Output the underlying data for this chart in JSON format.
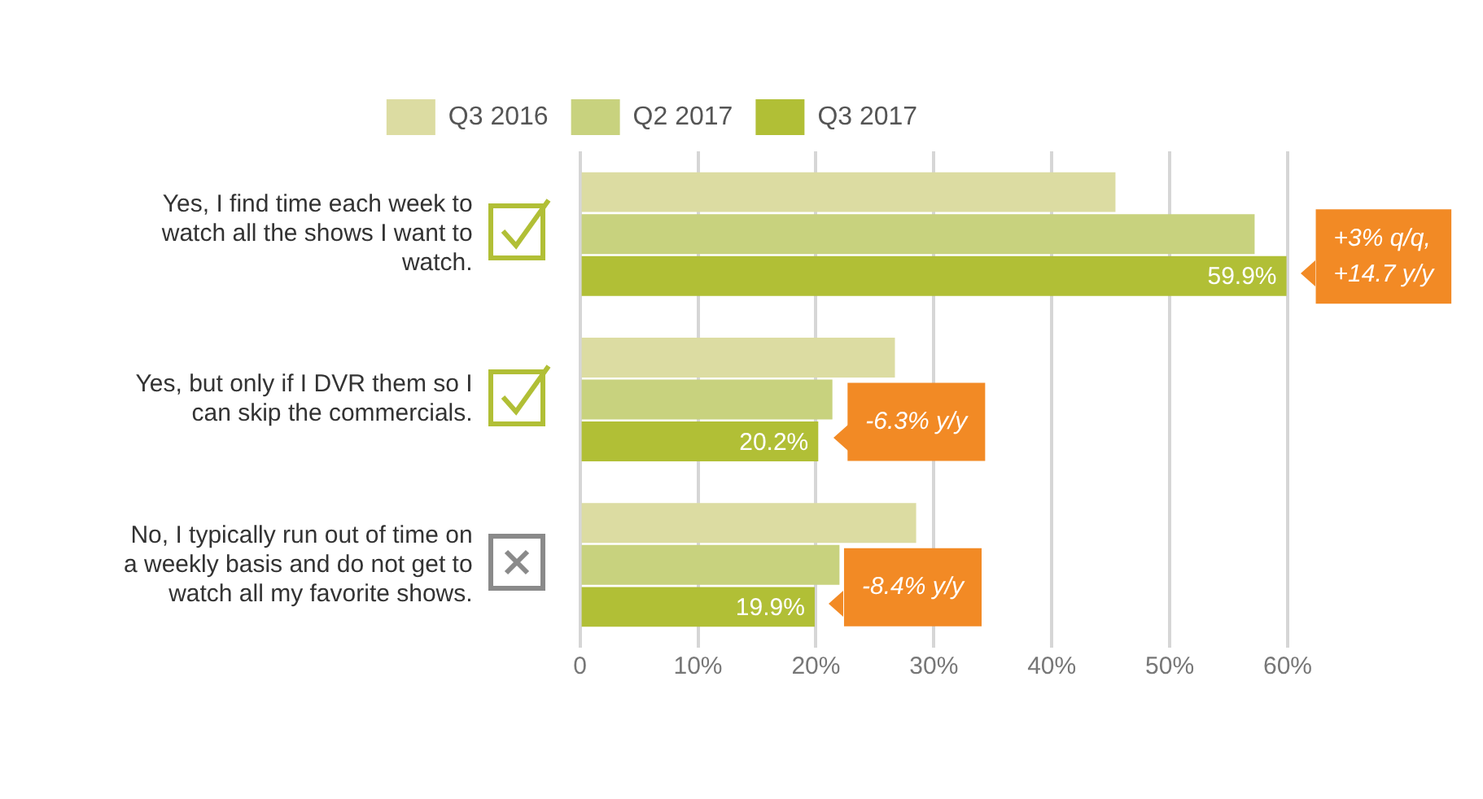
{
  "chart_data": {
    "type": "bar",
    "orientation": "horizontal",
    "categories": [
      "Yes, I find time each week to watch all the shows I want to watch.",
      "Yes, but only if I DVR them so I can skip the commercials.",
      "No, I typically run out of time on a weekly basis and do not get to watch all my favorite shows."
    ],
    "series": [
      {
        "name": "Q3 2016",
        "color": "#dcdca2",
        "values": [
          45.4,
          26.7,
          28.5
        ]
      },
      {
        "name": "Q2 2017",
        "color": "#c8d27e",
        "values": [
          57.2,
          21.4,
          22.0
        ]
      },
      {
        "name": "Q3 2017",
        "color": "#b1bf36",
        "values": [
          59.9,
          20.2,
          19.9
        ],
        "value_labels": [
          "59.9%",
          "20.2%",
          "19.9%"
        ]
      }
    ],
    "xlim": [
      0,
      60
    ],
    "xticks": [
      0,
      {
        "value": 10,
        "label": "10%"
      },
      {
        "value": 20,
        "label": "20%"
      },
      {
        "value": 30,
        "label": "30%"
      },
      {
        "value": 40,
        "label": "40%"
      },
      {
        "value": 50,
        "label": "50%"
      },
      {
        "value": 60,
        "label": "60%"
      }
    ],
    "grid": "x",
    "legend": "top",
    "annotations": [
      "+3% q/q,\n+14.7 y/y",
      "-6.3% y/y",
      "-8.4% y/y"
    ]
  }
}
